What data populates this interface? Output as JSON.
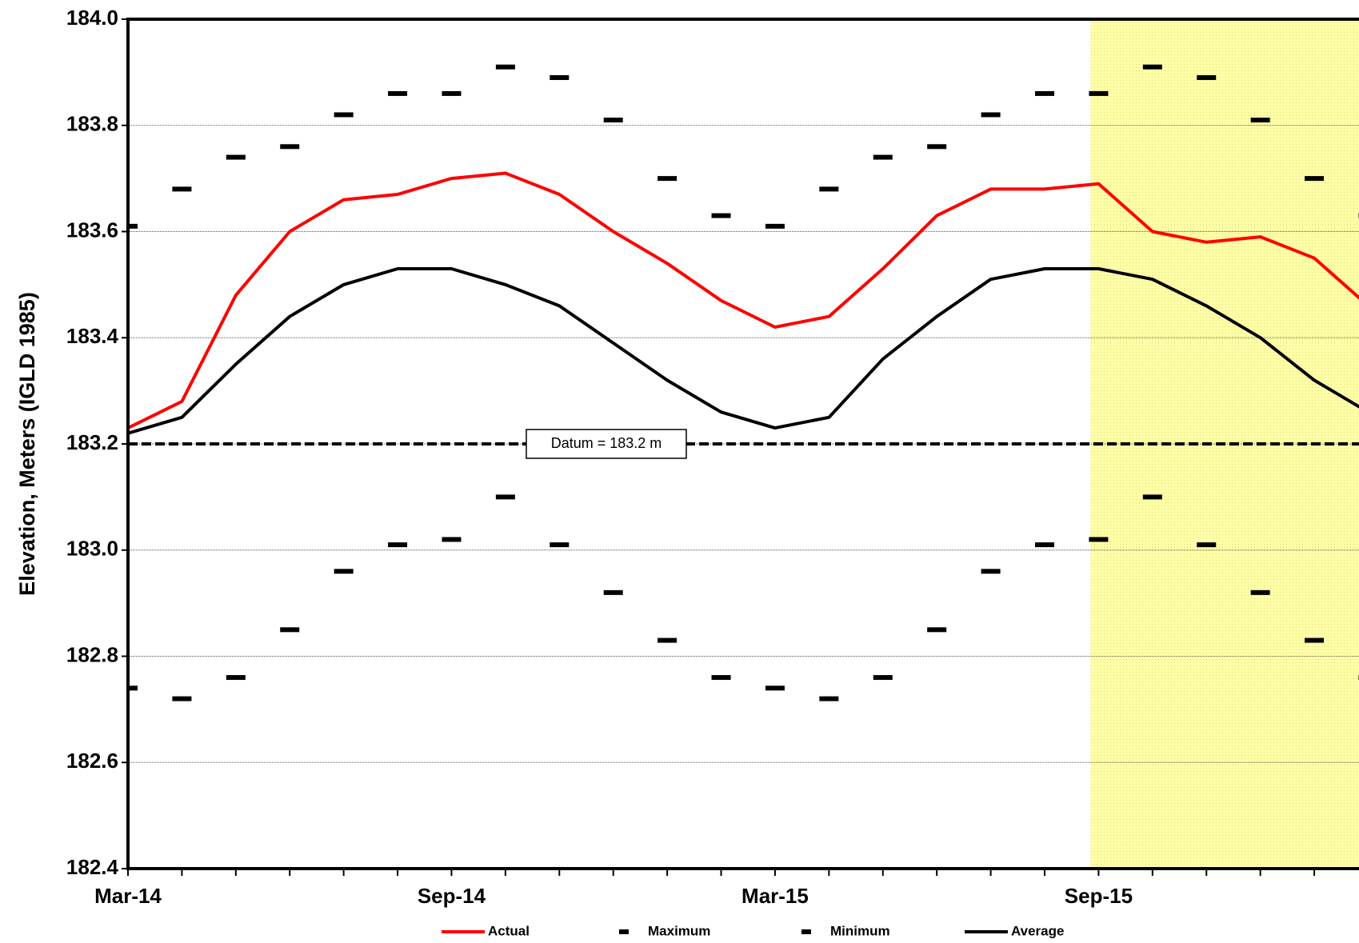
{
  "chart_data": {
    "type": "line",
    "y_label": "Elevation, Meters (IGLD 1985)",
    "categories": [
      "Mar-14",
      null,
      null,
      null,
      null,
      null,
      "Sep-14",
      null,
      null,
      null,
      null,
      null,
      "Mar-15",
      null,
      null,
      null,
      null,
      null,
      "Sep-15",
      null,
      null,
      null,
      null,
      null
    ],
    "xlim": [
      0,
      22.8
    ],
    "ylim": [
      182.4,
      184.0
    ],
    "yticks": [
      {
        "value": 182.4,
        "label": "182.4"
      },
      182.6,
      182.8,
      {
        "value": 183.0,
        "label": "183.0"
      },
      183.2,
      183.4,
      183.6,
      183.8,
      {
        "value": 184.0,
        "label": "184.0"
      }
    ],
    "grid": true,
    "legend": "bottom",
    "datum": 183.2,
    "datum_label": "Datum = 183.2 m",
    "series": [
      {
        "name": "Actual",
        "color": "#ff0000",
        "style": "line",
        "values": [
          183.23,
          183.28,
          183.48,
          183.6,
          183.66,
          183.67,
          183.7,
          183.71,
          183.67,
          183.6,
          183.54,
          183.47,
          183.42,
          183.44,
          183.53,
          183.63,
          183.68,
          183.68,
          183.69,
          183.6,
          183.58,
          183.59,
          183.55,
          183.46
        ]
      },
      {
        "name": "Maximum",
        "color": "#000000",
        "style": "dash",
        "values": [
          183.61,
          183.68,
          183.74,
          183.76,
          183.82,
          183.86,
          183.86,
          183.91,
          183.89,
          183.81,
          183.7,
          183.63,
          183.61,
          183.68,
          183.74,
          183.76,
          183.82,
          183.86,
          183.86,
          183.91,
          183.89,
          183.81,
          183.7,
          183.63
        ]
      },
      {
        "name": "Minimum",
        "color": "#000000",
        "style": "dash",
        "values": [
          182.74,
          182.72,
          182.76,
          182.85,
          182.96,
          183.01,
          183.02,
          183.1,
          183.01,
          182.92,
          182.83,
          182.76,
          182.74,
          182.72,
          182.76,
          182.85,
          182.96,
          183.01,
          183.02,
          183.1,
          183.01,
          182.92,
          182.83,
          182.76
        ]
      },
      {
        "name": "Average",
        "color": "#000000",
        "style": "line",
        "values": [
          183.22,
          183.25,
          183.35,
          183.44,
          183.5,
          183.53,
          183.53,
          183.5,
          183.46,
          183.39,
          183.32,
          183.26,
          183.23,
          183.25,
          183.36,
          183.44,
          183.51,
          183.53,
          183.53,
          183.51,
          183.46,
          183.4,
          183.32,
          183.26
        ]
      }
    ]
  }
}
